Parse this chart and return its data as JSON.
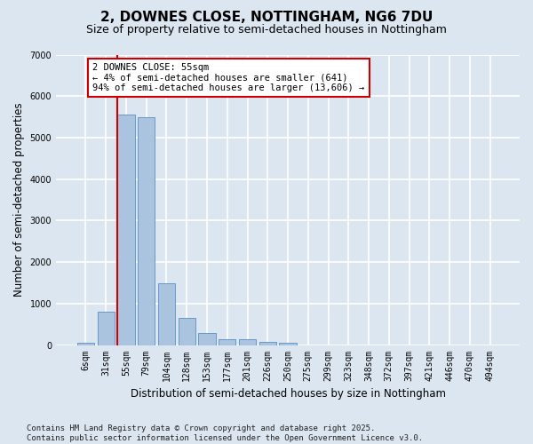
{
  "title": "2, DOWNES CLOSE, NOTTINGHAM, NG6 7DU",
  "subtitle": "Size of property relative to semi-detached houses in Nottingham",
  "xlabel": "Distribution of semi-detached houses by size in Nottingham",
  "ylabel": "Number of semi-detached properties",
  "categories": [
    "6sqm",
    "31sqm",
    "55sqm",
    "79sqm",
    "104sqm",
    "128sqm",
    "153sqm",
    "177sqm",
    "201sqm",
    "226sqm",
    "250sqm",
    "275sqm",
    "299sqm",
    "323sqm",
    "348sqm",
    "372sqm",
    "397sqm",
    "421sqm",
    "446sqm",
    "470sqm",
    "494sqm"
  ],
  "values": [
    50,
    800,
    5550,
    5500,
    1480,
    650,
    300,
    130,
    130,
    80,
    55,
    0,
    0,
    0,
    0,
    0,
    0,
    0,
    0,
    0,
    0
  ],
  "bar_color": "#aac4e0",
  "bar_edgecolor": "#6699cc",
  "highlight_bar_index": 2,
  "vline_color": "#cc0000",
  "annotation_text": "2 DOWNES CLOSE: 55sqm\n← 4% of semi-detached houses are smaller (641)\n94% of semi-detached houses are larger (13,606) →",
  "annotation_edge_color": "#cc0000",
  "ylim": [
    0,
    7000
  ],
  "yticks": [
    0,
    1000,
    2000,
    3000,
    4000,
    5000,
    6000,
    7000
  ],
  "bg_color": "#dce6f0",
  "grid_color": "#ffffff",
  "footer_line1": "Contains HM Land Registry data © Crown copyright and database right 2025.",
  "footer_line2": "Contains public sector information licensed under the Open Government Licence v3.0.",
  "title_fontsize": 11,
  "subtitle_fontsize": 9,
  "xlabel_fontsize": 8.5,
  "ylabel_fontsize": 8.5,
  "tick_fontsize": 7,
  "annot_fontsize": 7.5,
  "footer_fontsize": 6.5
}
